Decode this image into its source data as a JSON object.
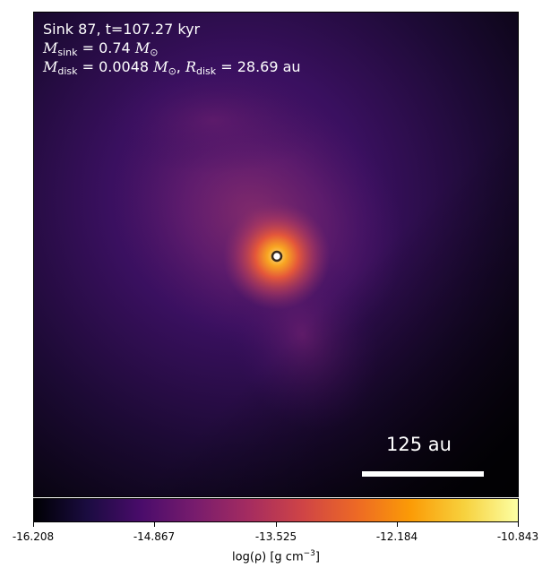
{
  "annotation": {
    "line1": "Sink 87, t=107.27 kyr",
    "m_sink_symbol": "M",
    "m_sink_sub": "sink",
    "m_sink_value": " = 0.74 ",
    "m_sink_unit": "M",
    "m_sink_unit_sub": "⊙",
    "m_disk_symbol": "M",
    "m_disk_sub": "disk",
    "m_disk_value": " = 0.0048 ",
    "m_disk_unit": "M",
    "m_disk_unit_sub": "⊙",
    "r_sep": ", ",
    "r_disk_symbol": "R",
    "r_disk_sub": "disk",
    "r_disk_value": " = 28.69 au"
  },
  "scalebar": {
    "label": "125 au"
  },
  "colorbar": {
    "colormap": "inferno",
    "ticks": [
      "-16.208",
      "-14.867",
      "-13.525",
      "-12.184",
      "-10.843"
    ],
    "label_main": "log(ρ) [g cm",
    "label_sup": "−3",
    "label_end": "]"
  },
  "sink_marker": {
    "fill": "#ffffff",
    "stroke": "#3a2a1a"
  }
}
